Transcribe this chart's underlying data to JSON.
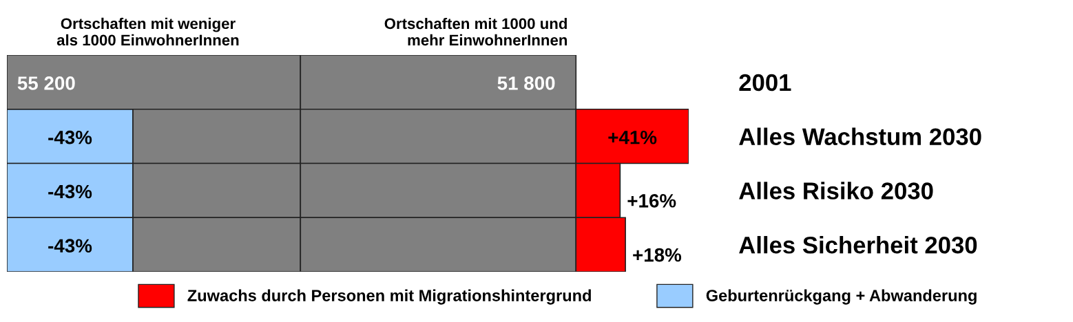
{
  "chart_data": {
    "type": "bar",
    "orientation": "horizontal",
    "stacked": true,
    "categories": [
      "2001",
      "Alles Wachstum 2030",
      "Alles Risiko 2030",
      "Alles Sicherheit 2030"
    ],
    "series": [
      {
        "name": "Geburtenrückgang + Abwanderung",
        "color": "#99ccff",
        "values": [
          null,
          23700,
          23700,
          23700
        ]
      },
      {
        "color": "#808080",
        "values": [
          55200,
          31500,
          31500,
          31500
        ],
        "value_labels": [
          "55 200",
          null,
          null,
          null
        ]
      },
      {
        "color": "#808080",
        "values": [
          51800,
          51800,
          51800,
          51800
        ],
        "value_labels": [
          "51 800",
          null,
          null,
          null
        ]
      },
      {
        "name": "Zuwachs durch Personen mit Migrationshintergrund",
        "color": "#ff0000",
        "values": [
          null,
          21200,
          8300,
          9300
        ]
      }
    ],
    "annotations": [
      "Ortschaften mit weniger\nals 1000 EinwohnerInnen",
      "Ortschaften mit 1000 und\nmehr EinwohnerInnen",
      "-43%",
      "-43%",
      "-43%",
      "+41%",
      "+16%",
      "+18%"
    ],
    "legend": "bottom"
  }
}
